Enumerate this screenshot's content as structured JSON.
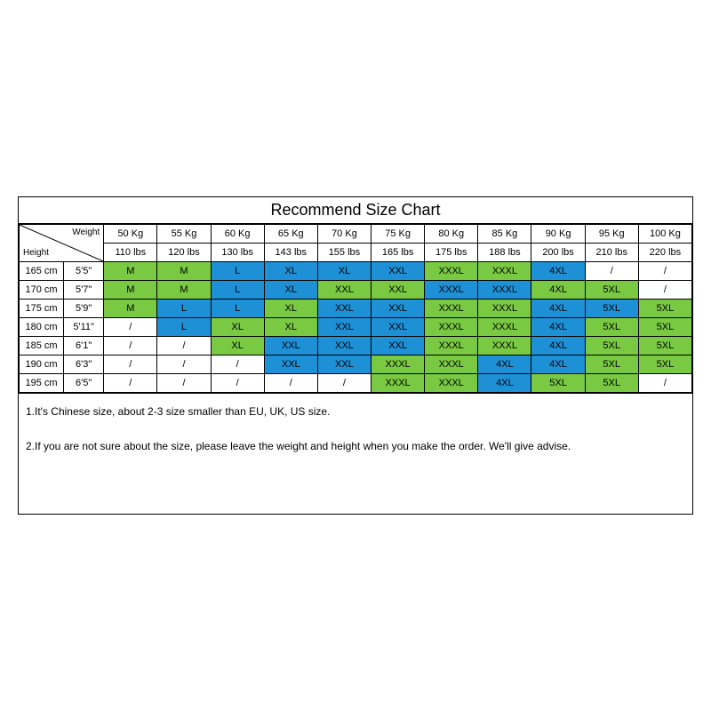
{
  "title": "Recommend Size Chart",
  "cornerLabels": {
    "weight": "Weight",
    "height": "Height"
  },
  "colors": {
    "green": "#7ac943",
    "blue": "#1e90d6",
    "none": "#ffffff",
    "border": "#000000",
    "text": "#000000"
  },
  "columnWidths": {
    "heightCm": 50,
    "heightFt": 45,
    "data": 60
  },
  "fontSizes": {
    "title": 18,
    "cell": 11,
    "notes": 12
  },
  "weightsKg": [
    "50 Kg",
    "55 Kg",
    "60 Kg",
    "65 Kg",
    "70 Kg",
    "75 Kg",
    "80 Kg",
    "85 Kg",
    "90 Kg",
    "95 Kg",
    "100 Kg"
  ],
  "weightsLbs": [
    "110 lbs",
    "120 lbs",
    "130 lbs",
    "143 lbs",
    "155 lbs",
    "165 lbs",
    "175 lbs",
    "188 lbs",
    "200 lbs",
    "210 lbs",
    "220 lbs"
  ],
  "rows": [
    {
      "heightCm": "165 cm",
      "heightFt": "5'5\"",
      "cells": [
        {
          "t": "M",
          "c": "green"
        },
        {
          "t": "M",
          "c": "green"
        },
        {
          "t": "L",
          "c": "blue"
        },
        {
          "t": "XL",
          "c": "blue"
        },
        {
          "t": "XL",
          "c": "blue"
        },
        {
          "t": "XXL",
          "c": "blue"
        },
        {
          "t": "XXXL",
          "c": "green"
        },
        {
          "t": "XXXL",
          "c": "green"
        },
        {
          "t": "4XL",
          "c": "blue"
        },
        {
          "t": "/",
          "c": "none"
        },
        {
          "t": "/",
          "c": "none"
        }
      ]
    },
    {
      "heightCm": "170 cm",
      "heightFt": "5'7\"",
      "cells": [
        {
          "t": "M",
          "c": "green"
        },
        {
          "t": "M",
          "c": "green"
        },
        {
          "t": "L",
          "c": "blue"
        },
        {
          "t": "XL",
          "c": "blue"
        },
        {
          "t": "XXL",
          "c": "green"
        },
        {
          "t": "XXL",
          "c": "green"
        },
        {
          "t": "XXXL",
          "c": "blue"
        },
        {
          "t": "XXXL",
          "c": "blue"
        },
        {
          "t": "4XL",
          "c": "green"
        },
        {
          "t": "5XL",
          "c": "green"
        },
        {
          "t": "/",
          "c": "none"
        }
      ]
    },
    {
      "heightCm": "175 cm",
      "heightFt": "5'9\"",
      "cells": [
        {
          "t": "M",
          "c": "green"
        },
        {
          "t": "L",
          "c": "blue"
        },
        {
          "t": "L",
          "c": "blue"
        },
        {
          "t": "XL",
          "c": "green"
        },
        {
          "t": "XXL",
          "c": "blue"
        },
        {
          "t": "XXL",
          "c": "blue"
        },
        {
          "t": "XXXL",
          "c": "green"
        },
        {
          "t": "XXXL",
          "c": "green"
        },
        {
          "t": "4XL",
          "c": "blue"
        },
        {
          "t": "5XL",
          "c": "blue"
        },
        {
          "t": "5XL",
          "c": "green"
        }
      ]
    },
    {
      "heightCm": "180 cm",
      "heightFt": "5'11\"",
      "cells": [
        {
          "t": "/",
          "c": "none"
        },
        {
          "t": "L",
          "c": "blue"
        },
        {
          "t": "XL",
          "c": "green"
        },
        {
          "t": "XL",
          "c": "green"
        },
        {
          "t": "XXL",
          "c": "blue"
        },
        {
          "t": "XXL",
          "c": "blue"
        },
        {
          "t": "XXXL",
          "c": "green"
        },
        {
          "t": "XXXL",
          "c": "green"
        },
        {
          "t": "4XL",
          "c": "blue"
        },
        {
          "t": "5XL",
          "c": "green"
        },
        {
          "t": "5XL",
          "c": "green"
        }
      ]
    },
    {
      "heightCm": "185 cm",
      "heightFt": "6'1\"",
      "cells": [
        {
          "t": "/",
          "c": "none"
        },
        {
          "t": "/",
          "c": "none"
        },
        {
          "t": "XL",
          "c": "green"
        },
        {
          "t": "XXL",
          "c": "blue"
        },
        {
          "t": "XXL",
          "c": "blue"
        },
        {
          "t": "XXL",
          "c": "blue"
        },
        {
          "t": "XXXL",
          "c": "green"
        },
        {
          "t": "XXXL",
          "c": "green"
        },
        {
          "t": "4XL",
          "c": "blue"
        },
        {
          "t": "5XL",
          "c": "green"
        },
        {
          "t": "5XL",
          "c": "green"
        }
      ]
    },
    {
      "heightCm": "190 cm",
      "heightFt": "6'3\"",
      "cells": [
        {
          "t": "/",
          "c": "none"
        },
        {
          "t": "/",
          "c": "none"
        },
        {
          "t": "/",
          "c": "none"
        },
        {
          "t": "XXL",
          "c": "blue"
        },
        {
          "t": "XXL",
          "c": "blue"
        },
        {
          "t": "XXXL",
          "c": "green"
        },
        {
          "t": "XXXL",
          "c": "green"
        },
        {
          "t": "4XL",
          "c": "blue"
        },
        {
          "t": "4XL",
          "c": "blue"
        },
        {
          "t": "5XL",
          "c": "green"
        },
        {
          "t": "5XL",
          "c": "green"
        }
      ]
    },
    {
      "heightCm": "195 cm",
      "heightFt": "6'5\"",
      "cells": [
        {
          "t": "/",
          "c": "none"
        },
        {
          "t": "/",
          "c": "none"
        },
        {
          "t": "/",
          "c": "none"
        },
        {
          "t": "/",
          "c": "none"
        },
        {
          "t": "/",
          "c": "none"
        },
        {
          "t": "XXXL",
          "c": "green"
        },
        {
          "t": "XXXL",
          "c": "green"
        },
        {
          "t": "4XL",
          "c": "blue"
        },
        {
          "t": "5XL",
          "c": "green"
        },
        {
          "t": "5XL",
          "c": "green"
        },
        {
          "t": "/",
          "c": "none"
        }
      ]
    }
  ],
  "notes": [
    "1.It's Chinese size, about 2-3 size smaller than EU, UK, US size.",
    "2.If you are not sure about the size, please leave the weight and height when you make the order. We'll give advise."
  ]
}
